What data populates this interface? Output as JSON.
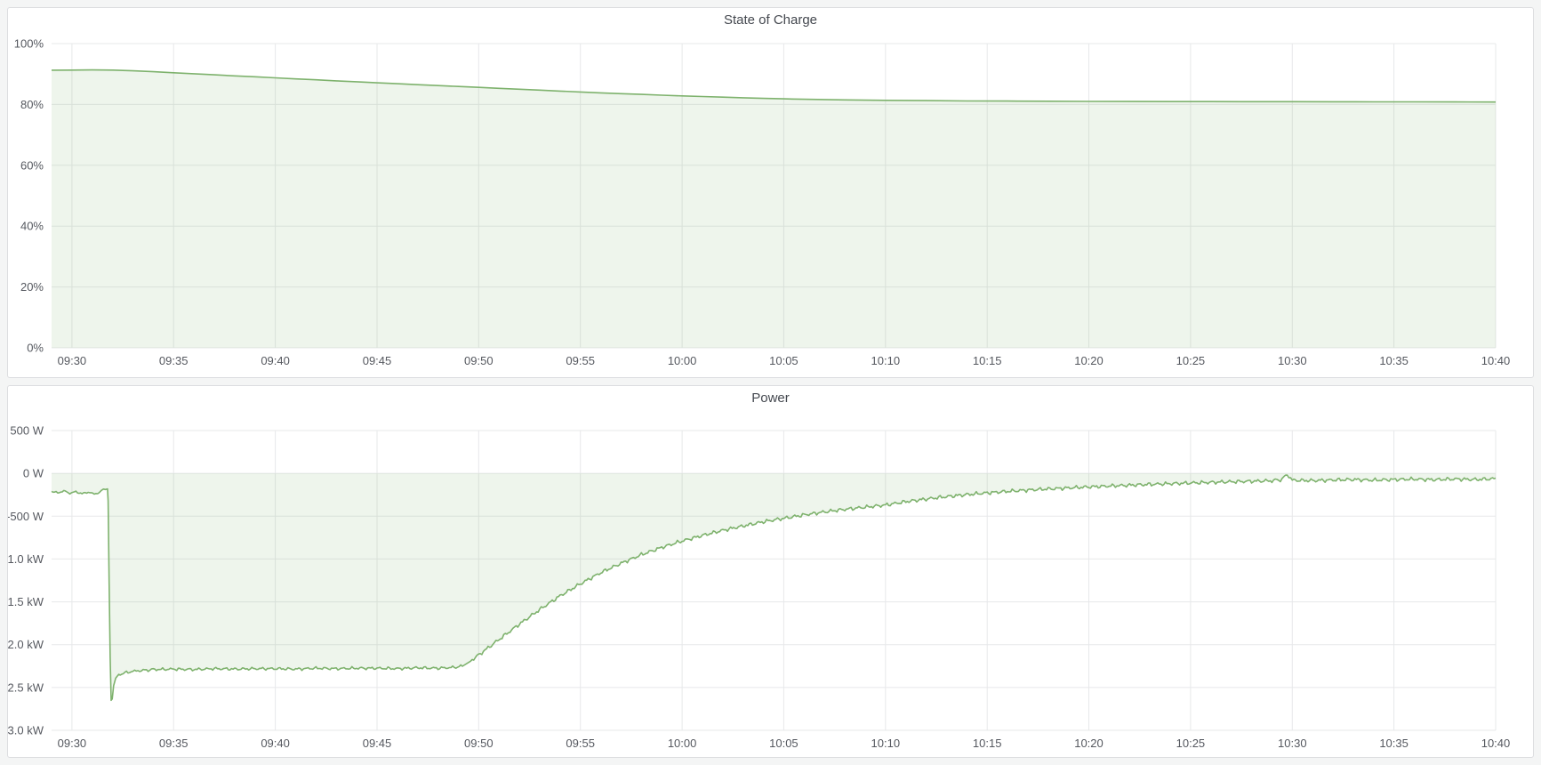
{
  "page": {
    "background_color": "#f4f5f5",
    "panel_background": "#ffffff"
  },
  "panels": [
    {
      "title": "State of Charge",
      "chart_index": 0
    },
    {
      "title": "Power",
      "chart_index": 1
    }
  ],
  "chart_data": [
    {
      "type": "area",
      "title": "State of Charge",
      "unit": "percent",
      "x_type": "time",
      "xlim": [
        -1,
        70
      ],
      "ylim": [
        0,
        100
      ],
      "grid": true,
      "legend": "none",
      "line_color": "#7EB26D",
      "fill_color": "rgba(126,178,109,0.13)",
      "fill_to_value": 0,
      "x_ticks": [
        {
          "minute": 0,
          "label": "09:30"
        },
        {
          "minute": 5,
          "label": "09:35"
        },
        {
          "minute": 10,
          "label": "09:40"
        },
        {
          "minute": 15,
          "label": "09:45"
        },
        {
          "minute": 20,
          "label": "09:50"
        },
        {
          "minute": 25,
          "label": "09:55"
        },
        {
          "minute": 30,
          "label": "10:00"
        },
        {
          "minute": 35,
          "label": "10:05"
        },
        {
          "minute": 40,
          "label": "10:10"
        },
        {
          "minute": 45,
          "label": "10:15"
        },
        {
          "minute": 50,
          "label": "10:20"
        },
        {
          "minute": 55,
          "label": "10:25"
        },
        {
          "minute": 60,
          "label": "10:30"
        },
        {
          "minute": 65,
          "label": "10:35"
        },
        {
          "minute": 70,
          "label": "10:40"
        }
      ],
      "y_ticks": [
        {
          "value": 100,
          "label": "100%"
        },
        {
          "value": 80,
          "label": "80%"
        },
        {
          "value": 60,
          "label": "60%"
        },
        {
          "value": 40,
          "label": "40%"
        },
        {
          "value": 20,
          "label": "20%"
        },
        {
          "value": 0,
          "label": "0%"
        }
      ],
      "series": [
        {
          "name": "State of Charge",
          "segments": [
            {
              "noise_w": 0,
              "points": [
                [
                  -1,
                  91.25
                ],
                [
                  0,
                  91.3
                ],
                [
                  1,
                  91.35
                ],
                [
                  2,
                  91.3
                ],
                [
                  3,
                  91.05
                ],
                [
                  4,
                  90.75
                ],
                [
                  5,
                  90.4
                ],
                [
                  6,
                  90.1
                ],
                [
                  7,
                  89.75
                ],
                [
                  8,
                  89.4
                ],
                [
                  9,
                  89.1
                ],
                [
                  10,
                  88.75
                ],
                [
                  11,
                  88.4
                ],
                [
                  12,
                  88.1
                ],
                [
                  13,
                  87.75
                ],
                [
                  14,
                  87.45
                ],
                [
                  15,
                  87.1
                ],
                [
                  16,
                  86.8
                ],
                [
                  17,
                  86.5
                ],
                [
                  18,
                  86.2
                ],
                [
                  19,
                  85.9
                ],
                [
                  20,
                  85.6
                ],
                [
                  21,
                  85.3
                ],
                [
                  22,
                  85.0
                ],
                [
                  23,
                  84.7
                ],
                [
                  24,
                  84.4
                ],
                [
                  25,
                  84.1
                ],
                [
                  26,
                  83.8
                ],
                [
                  27,
                  83.55
                ],
                [
                  28,
                  83.3
                ],
                [
                  29,
                  83.05
                ],
                [
                  30,
                  82.8
                ],
                [
                  31,
                  82.6
                ],
                [
                  32,
                  82.4
                ],
                [
                  33,
                  82.2
                ],
                [
                  34,
                  82.0
                ],
                [
                  35,
                  81.85
                ],
                [
                  36,
                  81.7
                ],
                [
                  37,
                  81.6
                ],
                [
                  38,
                  81.5
                ],
                [
                  39,
                  81.4
                ],
                [
                  40,
                  81.35
                ],
                [
                  42,
                  81.25
                ],
                [
                  44,
                  81.15
                ],
                [
                  46,
                  81.1
                ],
                [
                  48,
                  81.05
                ],
                [
                  50,
                  81.0
                ],
                [
                  52,
                  80.97
                ],
                [
                  54,
                  80.95
                ],
                [
                  56,
                  80.93
                ],
                [
                  58,
                  80.91
                ],
                [
                  60,
                  80.9
                ],
                [
                  62,
                  80.88
                ],
                [
                  64,
                  80.86
                ],
                [
                  66,
                  80.84
                ],
                [
                  68,
                  80.82
                ],
                [
                  70,
                  80.8
                ]
              ]
            }
          ]
        }
      ]
    },
    {
      "type": "area",
      "title": "Power",
      "unit": "watt",
      "x_type": "time",
      "xlim": [
        -1,
        70
      ],
      "ylim": [
        -3000,
        500
      ],
      "grid": true,
      "legend": "none",
      "line_color": "#7EB26D",
      "fill_color": "rgba(126,178,109,0.13)",
      "fill_to_value": 0,
      "x_ticks": [
        {
          "minute": 0,
          "label": "09:30"
        },
        {
          "minute": 5,
          "label": "09:35"
        },
        {
          "minute": 10,
          "label": "09:40"
        },
        {
          "minute": 15,
          "label": "09:45"
        },
        {
          "minute": 20,
          "label": "09:50"
        },
        {
          "minute": 25,
          "label": "09:55"
        },
        {
          "minute": 30,
          "label": "10:00"
        },
        {
          "minute": 35,
          "label": "10:05"
        },
        {
          "minute": 40,
          "label": "10:10"
        },
        {
          "minute": 45,
          "label": "10:15"
        },
        {
          "minute": 50,
          "label": "10:20"
        },
        {
          "minute": 55,
          "label": "10:25"
        },
        {
          "minute": 60,
          "label": "10:30"
        },
        {
          "minute": 65,
          "label": "10:35"
        },
        {
          "minute": 70,
          "label": "10:40"
        }
      ],
      "y_ticks": [
        {
          "value": 500,
          "label": "500 W"
        },
        {
          "value": 0,
          "label": "0 W"
        },
        {
          "value": -500,
          "label": "-500 W"
        },
        {
          "value": -1000,
          "label": "-1.0 kW"
        },
        {
          "value": -1500,
          "label": "-1.5 kW"
        },
        {
          "value": -2000,
          "label": "-2.0 kW"
        },
        {
          "value": -2500,
          "label": "-2.5 kW"
        },
        {
          "value": -3000,
          "label": "-3.0 kW"
        }
      ],
      "series": [
        {
          "name": "Power",
          "segments": [
            {
              "noise_w": 12,
              "points": [
                [
                  -1,
                  -210
                ],
                [
                  -0.7,
                  -228
                ],
                [
                  -0.4,
                  -205
                ],
                [
                  -0.1,
                  -232
                ],
                [
                  0.2,
                  -215
                ],
                [
                  0.5,
                  -238
                ],
                [
                  0.8,
                  -218
                ],
                [
                  1.1,
                  -242
                ],
                [
                  1.35,
                  -222
                ],
                [
                  1.55,
                  -185
                ],
                [
                  1.75,
                  -182
                ]
              ]
            },
            {
              "noise_w": 0,
              "points": [
                [
                  1.78,
                  -320
                ],
                [
                  1.83,
                  -1250
                ],
                [
                  1.88,
                  -2150
                ],
                [
                  1.93,
                  -2650
                ]
              ]
            },
            {
              "noise_w": 20,
              "points": [
                [
                  1.98,
                  -2615
                ],
                [
                  2.05,
                  -2480
                ],
                [
                  2.15,
                  -2400
                ],
                [
                  2.3,
                  -2350
                ],
                [
                  2.6,
                  -2330
                ],
                [
                  3,
                  -2310
                ],
                [
                  3.5,
                  -2300
                ],
                [
                  4,
                  -2290
                ],
                [
                  5,
                  -2285
                ],
                [
                  6,
                  -2290
                ],
                [
                  7,
                  -2280
                ],
                [
                  8,
                  -2285
                ],
                [
                  9,
                  -2280
                ],
                [
                  10,
                  -2280
                ],
                [
                  11,
                  -2285
                ],
                [
                  12,
                  -2275
                ],
                [
                  13,
                  -2280
                ],
                [
                  14,
                  -2275
                ],
                [
                  15,
                  -2275
                ],
                [
                  16,
                  -2280
                ],
                [
                  17,
                  -2270
                ],
                [
                  18,
                  -2275
                ],
                [
                  18.8,
                  -2265
                ],
                [
                  19.2,
                  -2250
                ]
              ]
            },
            {
              "noise_w": 26,
              "points": [
                [
                  19.6,
                  -2190
                ],
                [
                  20,
                  -2120
                ],
                [
                  21,
                  -1940
                ],
                [
                  22,
                  -1760
                ],
                [
                  23,
                  -1590
                ],
                [
                  24,
                  -1430
                ],
                [
                  25,
                  -1290
                ],
                [
                  26,
                  -1160
                ],
                [
                  27,
                  -1050
                ],
                [
                  28,
                  -950
                ],
                [
                  29,
                  -865
                ],
                [
                  30,
                  -790
                ],
                [
                  31,
                  -725
                ],
                [
                  32,
                  -665
                ],
                [
                  33,
                  -615
                ],
                [
                  34,
                  -565
                ],
                [
                  35,
                  -525
                ],
                [
                  36,
                  -485
                ],
                [
                  37,
                  -450
                ],
                [
                  38,
                  -420
                ],
                [
                  39,
                  -395
                ],
                [
                  40,
                  -370
                ],
                [
                  41,
                  -330
                ],
                [
                  42,
                  -300
                ],
                [
                  43,
                  -272
                ],
                [
                  44,
                  -248
                ],
                [
                  45,
                  -228
                ],
                [
                  46,
                  -210
                ],
                [
                  47,
                  -195
                ],
                [
                  48,
                  -182
                ],
                [
                  49,
                  -170
                ],
                [
                  50,
                  -158
                ],
                [
                  51,
                  -148
                ],
                [
                  52,
                  -138
                ],
                [
                  53,
                  -128
                ],
                [
                  54,
                  -120
                ],
                [
                  55,
                  -112
                ],
                [
                  56,
                  -105
                ],
                [
                  57,
                  -98
                ],
                [
                  58,
                  -92
                ],
                [
                  59,
                  -86
                ],
                [
                  59.5,
                  -70
                ],
                [
                  59.75,
                  -12
                ],
                [
                  60,
                  -80
                ],
                [
                  61,
                  -85
                ],
                [
                  62,
                  -78
                ],
                [
                  63,
                  -72
                ],
                [
                  64,
                  -80
                ],
                [
                  65,
                  -72
                ],
                [
                  66,
                  -68
                ],
                [
                  67,
                  -74
                ],
                [
                  68,
                  -66
                ],
                [
                  69,
                  -72
                ],
                [
                  70,
                  -62
                ]
              ]
            }
          ]
        }
      ]
    }
  ]
}
